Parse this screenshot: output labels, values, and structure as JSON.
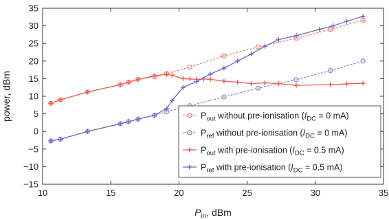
{
  "chart_data": {
    "type": "line",
    "xlabel": {
      "main": "P",
      "sub": "in",
      "rest": ", dBm"
    },
    "ylabel": "power, dBm",
    "xlim": [
      10,
      35
    ],
    "ylim": [
      -15,
      35
    ],
    "xticks": [
      "10",
      "15",
      "20",
      "25",
      "30",
      "35"
    ],
    "yticks": [
      "−15",
      "−10",
      "−5",
      "0",
      "5",
      "10",
      "15",
      "20",
      "25",
      "30",
      "35"
    ],
    "grid": false,
    "legend_position": "bottom-right",
    "series": [
      {
        "name": "P_out without pre-ionisation (I_DC = 0 mA)",
        "label_parts": {
          "main": "P",
          "sub": "out",
          "text": " without pre-ionisation (",
          "imain": "I",
          "isub": "DC",
          "tail": " = 0 mA)"
        },
        "color": "#f08070",
        "marker": "circle-dot",
        "dashed": true,
        "x": [
          10.6,
          11.3,
          13.3,
          15.7,
          16.3,
          17.0,
          18.2,
          19.1,
          20.8,
          23.3,
          25.8,
          28.6,
          31.1,
          33.5
        ],
        "y": [
          8.0,
          9.0,
          11.2,
          13.3,
          14.0,
          14.8,
          15.6,
          16.5,
          18.3,
          21.5,
          24.0,
          26.5,
          29.0,
          31.6
        ]
      },
      {
        "name": "P_ref without pre-ionisation (I_DC = 0 mA)",
        "label_parts": {
          "main": "P",
          "sub": "ref",
          "text": " without pre-ionisation (",
          "imain": "I",
          "isub": "DC",
          "tail": " = 0 mA)"
        },
        "color": "#8a86d0",
        "marker": "circle-dot",
        "dashed": true,
        "x": [
          10.6,
          11.3,
          13.3,
          15.7,
          16.3,
          17.0,
          18.2,
          19.1,
          20.8,
          23.3,
          25.8,
          28.6,
          31.1,
          33.5
        ],
        "y": [
          -2.7,
          -2.2,
          0.0,
          2.2,
          2.8,
          3.5,
          4.6,
          5.6,
          7.3,
          9.8,
          12.3,
          14.7,
          17.3,
          20.0
        ]
      },
      {
        "name": "P_out with pre-ionisation (I_DC = 0.5 mA)",
        "label_parts": {
          "main": "P",
          "sub": "out",
          "text": " with pre-ionisation (",
          "imain": "I",
          "isub": "DC",
          "tail": " = 0.5 mA)"
        },
        "color": "#f05a50",
        "marker": "plus",
        "dashed": false,
        "x": [
          10.6,
          11.3,
          13.3,
          15.7,
          16.3,
          17.0,
          18.2,
          19.1,
          19.5,
          20.3,
          20.8,
          21.3,
          21.8,
          22.3,
          23.3,
          24.3,
          25.3,
          26.3,
          27.3,
          28.6,
          31.1,
          32.3,
          33.5
        ],
        "y": [
          8.0,
          9.0,
          11.2,
          13.3,
          14.0,
          14.8,
          15.8,
          16.2,
          16.0,
          15.0,
          14.9,
          14.8,
          14.9,
          14.8,
          14.3,
          14.0,
          13.6,
          13.8,
          13.6,
          13.1,
          13.3,
          13.5,
          13.7
        ]
      },
      {
        "name": "P_ref with pre-ionisation (I_DC = 0.5 mA)",
        "label_parts": {
          "main": "P",
          "sub": "ref",
          "text": " with pre-ionisation (",
          "imain": "I",
          "isub": "DC",
          "tail": " = 0.5 mA)"
        },
        "color": "#6e6ac6",
        "marker": "plus",
        "dashed": false,
        "x": [
          10.6,
          11.3,
          13.3,
          15.7,
          16.3,
          17.0,
          18.2,
          19.1,
          19.5,
          20.3,
          21.3,
          22.3,
          23.3,
          24.3,
          25.3,
          26.3,
          27.3,
          28.6,
          30.3,
          31.3,
          32.3,
          33.5
        ],
        "y": [
          -2.7,
          -2.2,
          0.0,
          2.2,
          2.8,
          3.5,
          4.6,
          6.5,
          8.8,
          12.5,
          14.2,
          16.3,
          18.0,
          20.0,
          22.0,
          24.2,
          26.1,
          27.2,
          29.0,
          30.0,
          31.3,
          32.7
        ]
      }
    ]
  }
}
